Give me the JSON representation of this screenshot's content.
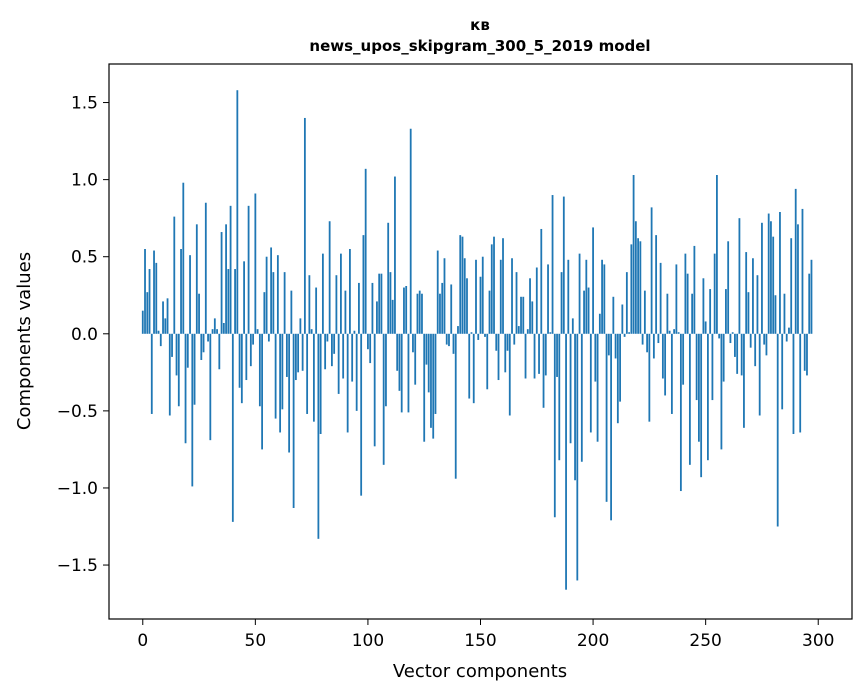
{
  "chart_data": {
    "type": "bar",
    "title": "кв",
    "subtitle": "news_upos_skipgram_300_5_2019 model",
    "xlabel": "Vector components",
    "ylabel": "Components values",
    "xlim": [
      -15,
      315
    ],
    "ylim": [
      -1.85,
      1.75
    ],
    "xticks": [
      0,
      50,
      100,
      150,
      200,
      250,
      300
    ],
    "yticks": [
      -1.5,
      -1.0,
      -0.5,
      0.0,
      0.5,
      1.0,
      1.5
    ],
    "ytick_labels": [
      "−1.5",
      "−1.0",
      "−0.5",
      "0.0",
      "0.5",
      "1.0",
      "1.5"
    ],
    "bar_color": "#1f77b4",
    "grid": false,
    "values": [
      0.15,
      0.55,
      0.27,
      0.42,
      -0.52,
      0.54,
      0.46,
      0.02,
      -0.08,
      0.21,
      0.1,
      0.23,
      -0.53,
      -0.15,
      0.76,
      -0.27,
      -0.47,
      0.55,
      0.98,
      -0.71,
      -0.22,
      0.51,
      -0.99,
      -0.46,
      0.71,
      0.26,
      -0.17,
      -0.12,
      0.85,
      -0.05,
      -0.69,
      0.03,
      0.1,
      0.03,
      -0.23,
      0.66,
      0.07,
      0.71,
      0.42,
      0.83,
      -1.22,
      0.42,
      1.58,
      -0.35,
      -0.45,
      0.47,
      -0.3,
      0.83,
      -0.21,
      -0.07,
      0.91,
      0.03,
      -0.47,
      -0.75,
      0.27,
      0.5,
      -0.05,
      0.56,
      0.4,
      -0.55,
      0.51,
      -0.64,
      -0.49,
      0.4,
      -0.28,
      -0.77,
      0.28,
      -1.13,
      -0.3,
      -0.25,
      0.1,
      -0.24,
      1.4,
      -0.52,
      0.38,
      0.03,
      -0.57,
      0.3,
      -1.33,
      -0.65,
      0.52,
      -0.23,
      -0.05,
      0.73,
      -0.21,
      -0.13,
      0.38,
      -0.39,
      0.52,
      -0.29,
      0.28,
      -0.64,
      0.55,
      -0.31,
      0.02,
      -0.5,
      0.33,
      -1.05,
      0.64,
      1.07,
      -0.1,
      -0.19,
      0.33,
      -0.73,
      0.21,
      0.39,
      0.39,
      -0.85,
      -0.47,
      0.72,
      0.4,
      0.22,
      1.02,
      -0.24,
      -0.37,
      -0.51,
      0.3,
      0.31,
      -0.51,
      1.33,
      -0.12,
      -0.33,
      0.26,
      0.28,
      0.26,
      -0.7,
      -0.2,
      -0.38,
      -0.61,
      -0.68,
      -0.52,
      0.54,
      0.26,
      0.33,
      0.49,
      -0.07,
      -0.08,
      0.32,
      -0.13,
      -0.94,
      0.05,
      0.64,
      0.63,
      0.49,
      0.36,
      -0.42,
      0.01,
      -0.45,
      0.48,
      -0.04,
      0.37,
      0.5,
      -0.02,
      -0.36,
      0.28,
      0.58,
      0.63,
      -0.11,
      -0.3,
      0.48,
      0.62,
      -0.25,
      -0.11,
      -0.53,
      0.49,
      -0.07,
      0.4,
      0.05,
      0.24,
      0.24,
      -0.29,
      0.03,
      0.36,
      0.21,
      -0.29,
      0.43,
      -0.26,
      0.68,
      -0.48,
      -0.27,
      0.45,
      0.01,
      0.9,
      -1.19,
      -0.28,
      -0.82,
      0.4,
      0.89,
      -1.66,
      0.48,
      -0.71,
      0.1,
      -0.95,
      -1.6,
      0.52,
      -0.83,
      0.28,
      0.48,
      0.3,
      -0.64,
      0.69,
      -0.31,
      -0.7,
      0.13,
      0.48,
      0.45,
      -1.09,
      -0.14,
      -1.21,
      0.24,
      -0.16,
      -0.58,
      -0.44,
      0.19,
      -0.02,
      0.4,
      0.01,
      0.58,
      1.03,
      0.73,
      0.62,
      0.6,
      -0.07,
      0.28,
      -0.12,
      -0.57,
      0.82,
      -0.16,
      0.64,
      -0.06,
      0.46,
      -0.29,
      -0.4,
      0.26,
      0.02,
      -0.52,
      0.03,
      0.45,
      0.01,
      -1.02,
      -0.33,
      0.52,
      0.39,
      -0.85,
      0.26,
      0.57,
      -0.43,
      -0.7,
      -0.93,
      0.36,
      0.08,
      -0.82,
      0.29,
      -0.43,
      0.52,
      1.03,
      -0.03,
      -0.75,
      -0.31,
      0.29,
      0.6,
      -0.06,
      0.01,
      -0.15,
      -0.26,
      0.75,
      -0.27,
      -0.61,
      0.53,
      0.27,
      -0.09,
      0.49,
      -0.21,
      0.38,
      -0.53,
      0.72,
      -0.07,
      -0.14,
      0.78,
      0.73,
      0.63,
      0.25,
      -1.25,
      0.79,
      -0.49,
      0.26,
      -0.05,
      0.04,
      0.62,
      -0.65,
      0.94,
      0.71,
      -0.64,
      0.81,
      -0.24,
      -0.27,
      0.39,
      0.48
    ]
  }
}
